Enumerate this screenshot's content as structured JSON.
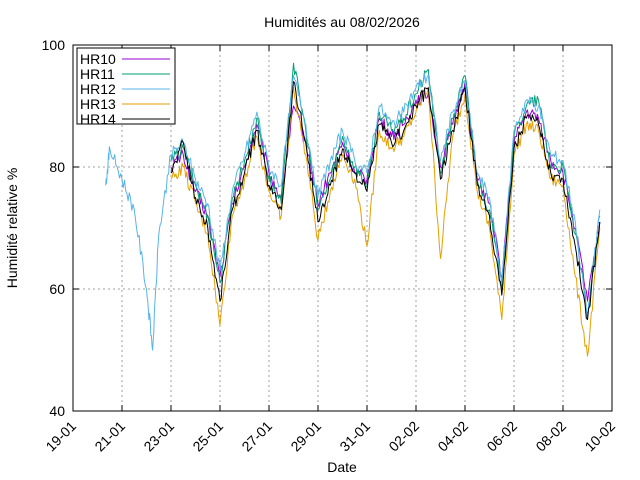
{
  "chart_data": {
    "type": "line",
    "title": "Humidités au 08/02/2026",
    "xlabel": "Date",
    "ylabel": "Humidité relative %",
    "xlim": [
      "2026-01-19",
      "2026-02-10"
    ],
    "ylim": [
      40,
      100
    ],
    "x_ticks": [
      "19-01",
      "21-01",
      "23-01",
      "25-01",
      "27-01",
      "29-01",
      "31-01",
      "02-02",
      "04-02",
      "06-02",
      "08-02",
      "10-02"
    ],
    "y_ticks": [
      40,
      60,
      80,
      100
    ],
    "grid": true,
    "legend_position": "top-left",
    "series": [
      {
        "name": "HR10",
        "color": "#9400d3",
        "points": [
          [
            "2026-01-23 00:00",
            80
          ],
          [
            "2026-01-23 12:00",
            82
          ],
          [
            "2026-01-24 00:00",
            76
          ],
          [
            "2026-01-24 12:00",
            72
          ],
          [
            "2026-01-25 00:00",
            62
          ],
          [
            "2026-01-25 12:00",
            74
          ],
          [
            "2026-01-26 00:00",
            80
          ],
          [
            "2026-01-26 12:00",
            87
          ],
          [
            "2026-01-27 00:00",
            79
          ],
          [
            "2026-01-27 12:00",
            75
          ],
          [
            "2026-01-28 00:00",
            90
          ],
          [
            "2026-01-28 12:00",
            84
          ],
          [
            "2026-01-29 00:00",
            74
          ],
          [
            "2026-01-29 12:00",
            79
          ],
          [
            "2026-01-30 00:00",
            84
          ],
          [
            "2026-01-30 12:00",
            79
          ],
          [
            "2026-01-31 00:00",
            78
          ],
          [
            "2026-01-31 12:00",
            88
          ],
          [
            "2026-02-01 00:00",
            85
          ],
          [
            "2026-02-01 12:00",
            87
          ],
          [
            "2026-02-02 00:00",
            91
          ],
          [
            "2026-02-02 12:00",
            92
          ],
          [
            "2026-02-03 00:00",
            80
          ],
          [
            "2026-02-03 12:00",
            87
          ],
          [
            "2026-02-04 00:00",
            94
          ],
          [
            "2026-02-04 12:00",
            78
          ],
          [
            "2026-02-05 00:00",
            74
          ],
          [
            "2026-02-05 12:00",
            62
          ],
          [
            "2026-02-06 00:00",
            84
          ],
          [
            "2026-02-06 12:00",
            89
          ],
          [
            "2026-02-07 00:00",
            88
          ],
          [
            "2026-02-07 12:00",
            81
          ],
          [
            "2026-02-08 00:00",
            79
          ],
          [
            "2026-02-08 12:00",
            70
          ],
          [
            "2026-02-09 00:00",
            58
          ],
          [
            "2026-02-09 12:00",
            71
          ]
        ]
      },
      {
        "name": "HR11",
        "color": "#009e73",
        "points": [
          [
            "2026-01-23 00:00",
            81
          ],
          [
            "2026-01-23 12:00",
            83
          ],
          [
            "2026-01-24 00:00",
            77
          ],
          [
            "2026-01-24 12:00",
            72
          ],
          [
            "2026-01-25 00:00",
            61
          ],
          [
            "2026-01-25 12:00",
            75
          ],
          [
            "2026-01-26 00:00",
            81
          ],
          [
            "2026-01-26 12:00",
            88
          ],
          [
            "2026-01-27 00:00",
            78
          ],
          [
            "2026-01-27 12:00",
            74
          ],
          [
            "2026-01-28 00:00",
            97
          ],
          [
            "2026-01-28 12:00",
            86
          ],
          [
            "2026-01-29 00:00",
            73
          ],
          [
            "2026-01-29 12:00",
            78
          ],
          [
            "2026-01-30 00:00",
            85
          ],
          [
            "2026-01-30 12:00",
            80
          ],
          [
            "2026-01-31 00:00",
            77
          ],
          [
            "2026-01-31 12:00",
            89
          ],
          [
            "2026-02-01 00:00",
            86
          ],
          [
            "2026-02-01 12:00",
            88
          ],
          [
            "2026-02-02 00:00",
            92
          ],
          [
            "2026-02-02 12:00",
            96
          ],
          [
            "2026-02-03 00:00",
            79
          ],
          [
            "2026-02-03 12:00",
            88
          ],
          [
            "2026-02-04 00:00",
            95
          ],
          [
            "2026-02-04 12:00",
            78
          ],
          [
            "2026-02-05 00:00",
            73
          ],
          [
            "2026-02-05 12:00",
            60
          ],
          [
            "2026-02-06 00:00",
            85
          ],
          [
            "2026-02-06 12:00",
            90
          ],
          [
            "2026-02-07 00:00",
            91
          ],
          [
            "2026-02-07 12:00",
            80
          ],
          [
            "2026-02-08 00:00",
            80
          ],
          [
            "2026-02-08 12:00",
            69
          ],
          [
            "2026-02-09 00:00",
            56
          ],
          [
            "2026-02-09 12:00",
            72
          ]
        ]
      },
      {
        "name": "HR12",
        "color": "#56b4e9",
        "points": [
          [
            "2026-01-20 08:00",
            77
          ],
          [
            "2026-01-20 12:00",
            83
          ],
          [
            "2026-01-21 00:00",
            78
          ],
          [
            "2026-01-21 12:00",
            73
          ],
          [
            "2026-01-22 00:00",
            60
          ],
          [
            "2026-01-22 06:00",
            50
          ],
          [
            "2026-01-22 12:00",
            69
          ],
          [
            "2026-01-23 00:00",
            82
          ],
          [
            "2026-01-23 12:00",
            84
          ],
          [
            "2026-01-24 00:00",
            78
          ],
          [
            "2026-01-24 12:00",
            74
          ],
          [
            "2026-01-25 00:00",
            63
          ],
          [
            "2026-01-25 12:00",
            76
          ],
          [
            "2026-01-26 00:00",
            82
          ],
          [
            "2026-01-26 12:00",
            89
          ],
          [
            "2026-01-27 00:00",
            80
          ],
          [
            "2026-01-27 12:00",
            77
          ],
          [
            "2026-01-28 00:00",
            95
          ],
          [
            "2026-01-28 12:00",
            87
          ],
          [
            "2026-01-29 00:00",
            75
          ],
          [
            "2026-01-29 12:00",
            81
          ],
          [
            "2026-01-30 00:00",
            86
          ],
          [
            "2026-01-30 12:00",
            81
          ],
          [
            "2026-01-31 00:00",
            79
          ],
          [
            "2026-01-31 12:00",
            90
          ],
          [
            "2026-02-01 00:00",
            87
          ],
          [
            "2026-02-01 12:00",
            89
          ],
          [
            "2026-02-02 00:00",
            93
          ],
          [
            "2026-02-02 12:00",
            95
          ],
          [
            "2026-02-03 00:00",
            81
          ],
          [
            "2026-02-03 12:00",
            89
          ],
          [
            "2026-02-04 00:00",
            94
          ],
          [
            "2026-02-04 12:00",
            79
          ],
          [
            "2026-02-05 00:00",
            75
          ],
          [
            "2026-02-05 12:00",
            61
          ],
          [
            "2026-02-06 00:00",
            86
          ],
          [
            "2026-02-06 12:00",
            91
          ],
          [
            "2026-02-07 00:00",
            90
          ],
          [
            "2026-02-07 12:00",
            82
          ],
          [
            "2026-02-08 00:00",
            81
          ],
          [
            "2026-02-08 12:00",
            71
          ],
          [
            "2026-02-09 00:00",
            55
          ],
          [
            "2026-02-09 12:00",
            73
          ]
        ]
      },
      {
        "name": "HR13",
        "color": "#e69f00",
        "points": [
          [
            "2026-01-23 00:00",
            78
          ],
          [
            "2026-01-23 12:00",
            80
          ],
          [
            "2026-01-24 00:00",
            74
          ],
          [
            "2026-01-24 12:00",
            69
          ],
          [
            "2026-01-25 00:00",
            54
          ],
          [
            "2026-01-25 12:00",
            72
          ],
          [
            "2026-01-26 00:00",
            78
          ],
          [
            "2026-01-26 12:00",
            85
          ],
          [
            "2026-01-27 00:00",
            76
          ],
          [
            "2026-01-27 12:00",
            72
          ],
          [
            "2026-01-28 00:00",
            93
          ],
          [
            "2026-01-28 12:00",
            82
          ],
          [
            "2026-01-29 00:00",
            68
          ],
          [
            "2026-01-29 12:00",
            76
          ],
          [
            "2026-01-30 00:00",
            82
          ],
          [
            "2026-01-30 12:00",
            78
          ],
          [
            "2026-01-31 00:00",
            67
          ],
          [
            "2026-01-31 12:00",
            86
          ],
          [
            "2026-02-01 00:00",
            83
          ],
          [
            "2026-02-01 12:00",
            85
          ],
          [
            "2026-02-02 00:00",
            89
          ],
          [
            "2026-02-02 12:00",
            93
          ],
          [
            "2026-02-03 00:00",
            65
          ],
          [
            "2026-02-03 12:00",
            85
          ],
          [
            "2026-02-04 00:00",
            92
          ],
          [
            "2026-02-04 12:00",
            76
          ],
          [
            "2026-02-05 00:00",
            70
          ],
          [
            "2026-02-05 12:00",
            55
          ],
          [
            "2026-02-06 00:00",
            82
          ],
          [
            "2026-02-06 12:00",
            87
          ],
          [
            "2026-02-07 00:00",
            86
          ],
          [
            "2026-02-07 12:00",
            78
          ],
          [
            "2026-02-08 00:00",
            77
          ],
          [
            "2026-02-08 12:00",
            62
          ],
          [
            "2026-02-09 00:00",
            49
          ],
          [
            "2026-02-09 12:00",
            70
          ]
        ]
      },
      {
        "name": "HR14",
        "color": "#000000",
        "points": [
          [
            "2026-01-23 00:00",
            79
          ],
          [
            "2026-01-23 12:00",
            84
          ],
          [
            "2026-01-24 00:00",
            75
          ],
          [
            "2026-01-24 12:00",
            70
          ],
          [
            "2026-01-25 00:00",
            58
          ],
          [
            "2026-01-25 12:00",
            73
          ],
          [
            "2026-01-26 00:00",
            79
          ],
          [
            "2026-01-26 12:00",
            86
          ],
          [
            "2026-01-27 00:00",
            77
          ],
          [
            "2026-01-27 12:00",
            73
          ],
          [
            "2026-01-28 00:00",
            94
          ],
          [
            "2026-01-28 12:00",
            84
          ],
          [
            "2026-01-29 00:00",
            71
          ],
          [
            "2026-01-29 12:00",
            77
          ],
          [
            "2026-01-30 00:00",
            83
          ],
          [
            "2026-01-30 12:00",
            79
          ],
          [
            "2026-01-31 00:00",
            76
          ],
          [
            "2026-01-31 12:00",
            87
          ],
          [
            "2026-02-01 00:00",
            84
          ],
          [
            "2026-02-01 12:00",
            86
          ],
          [
            "2026-02-02 00:00",
            90
          ],
          [
            "2026-02-02 12:00",
            93
          ],
          [
            "2026-02-03 00:00",
            78
          ],
          [
            "2026-02-03 12:00",
            86
          ],
          [
            "2026-02-04 00:00",
            93
          ],
          [
            "2026-02-04 12:00",
            77
          ],
          [
            "2026-02-05 00:00",
            72
          ],
          [
            "2026-02-05 12:00",
            59
          ],
          [
            "2026-02-06 00:00",
            83
          ],
          [
            "2026-02-06 12:00",
            88
          ],
          [
            "2026-02-07 00:00",
            87
          ],
          [
            "2026-02-07 12:00",
            79
          ],
          [
            "2026-02-08 00:00",
            78
          ],
          [
            "2026-02-08 12:00",
            67
          ],
          [
            "2026-02-09 00:00",
            55
          ],
          [
            "2026-02-09 12:00",
            71
          ]
        ]
      }
    ]
  }
}
